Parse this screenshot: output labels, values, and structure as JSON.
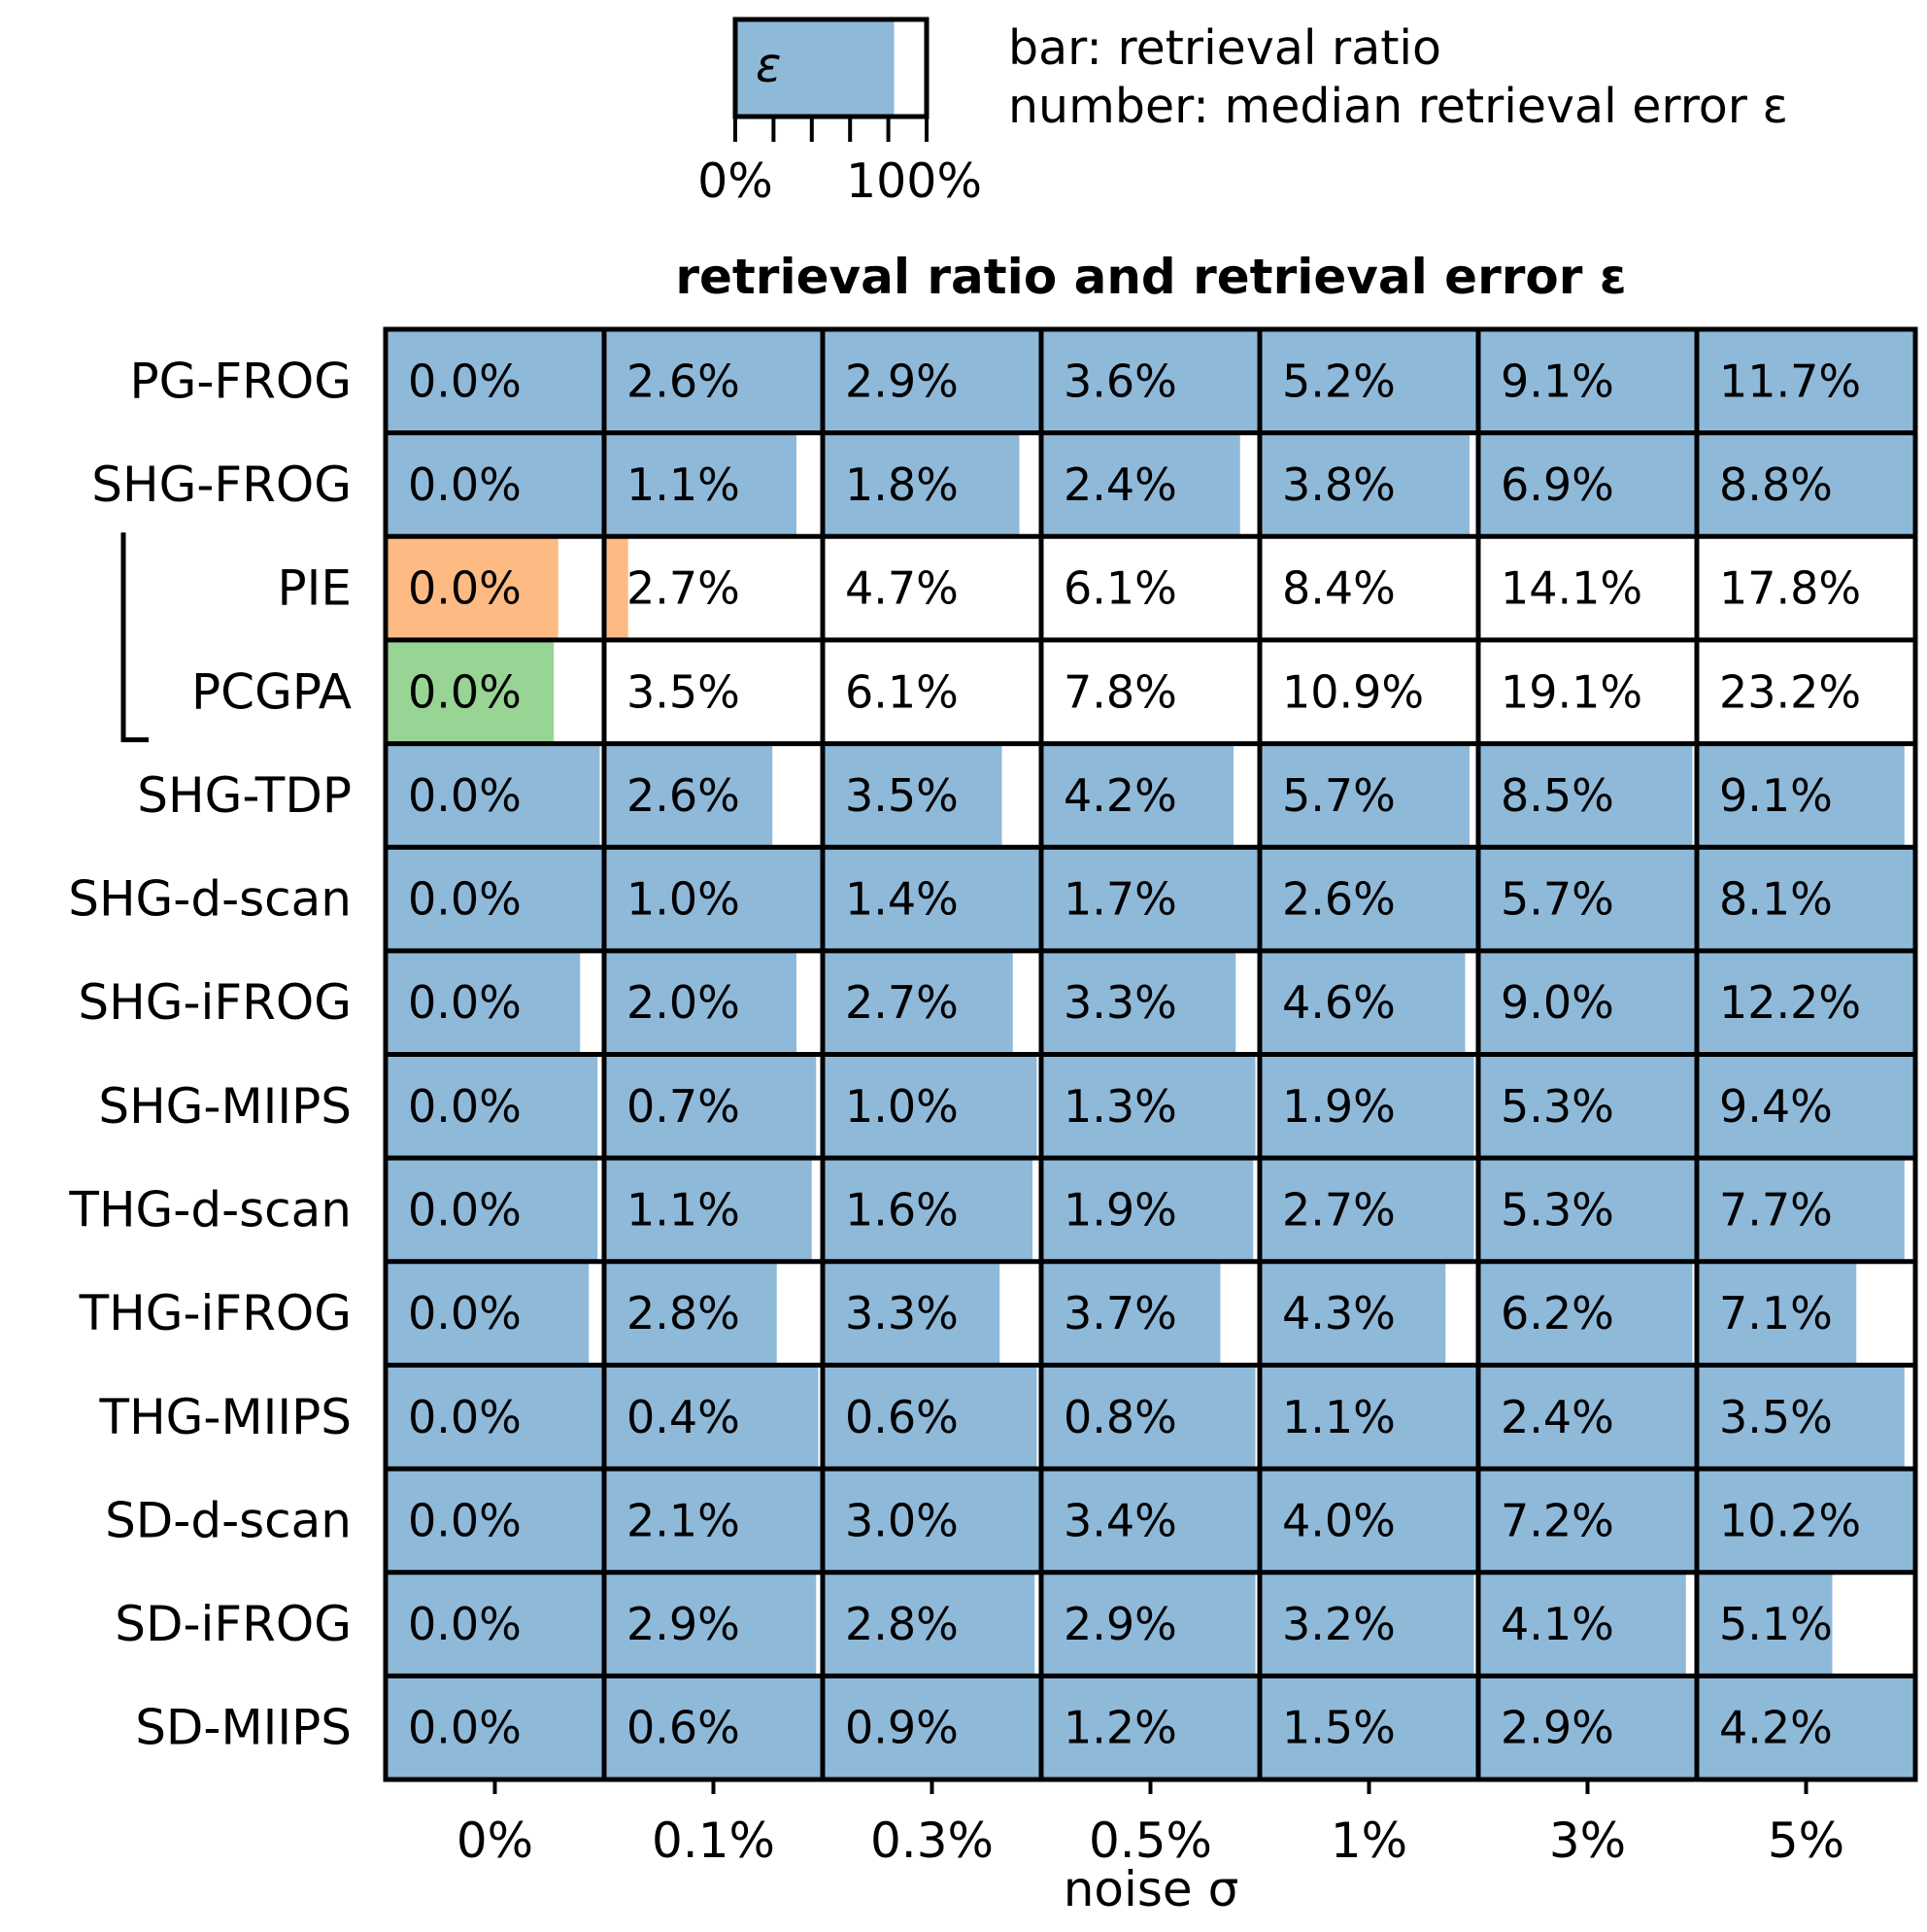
{
  "chart_data": {
    "type": "heatmap",
    "title": "retrieval ratio and retrieval error ε",
    "xlabel": "noise σ",
    "ylabel": "",
    "legend": {
      "swatch_symbol": "ε",
      "line1": "bar: retrieval ratio",
      "line2": "number: median retrieval error ε",
      "min_label": "0%",
      "max_label": "100%",
      "example_ratio": 0.83
    },
    "columns": [
      "0%",
      "0.1%",
      "0.3%",
      "0.5%",
      "1%",
      "3%",
      "5%"
    ],
    "bracket_rows": [
      "PIE",
      "PCGPA"
    ],
    "colors": {
      "default": "#8fb9d9",
      "PIE": "#fdbb83",
      "PCGPA": "#98d494"
    },
    "rows": [
      {
        "name": "PG-FROG",
        "errors": [
          "0.0%",
          "2.6%",
          "2.9%",
          "3.6%",
          "5.2%",
          "9.1%",
          "11.7%"
        ],
        "ratios": [
          1,
          1,
          1,
          1,
          1,
          1,
          1
        ]
      },
      {
        "name": "SHG-FROG",
        "errors": [
          "0.0%",
          "1.1%",
          "1.8%",
          "2.4%",
          "3.8%",
          "6.9%",
          "8.8%"
        ],
        "ratios": [
          1,
          0.88,
          0.9,
          0.91,
          0.96,
          1,
          1
        ]
      },
      {
        "name": "PIE",
        "errors": [
          "0.0%",
          "2.7%",
          "4.7%",
          "6.1%",
          "8.4%",
          "14.1%",
          "17.8%"
        ],
        "ratios": [
          0.79,
          0.11,
          0,
          0,
          0,
          0,
          0
        ]
      },
      {
        "name": "PCGPA",
        "errors": [
          "0.0%",
          "3.5%",
          "6.1%",
          "7.8%",
          "10.9%",
          "19.1%",
          "23.2%"
        ],
        "ratios": [
          0.77,
          0,
          0,
          0,
          0,
          0,
          0
        ]
      },
      {
        "name": "SHG-TDP",
        "errors": [
          "0.0%",
          "2.6%",
          "3.5%",
          "4.2%",
          "5.7%",
          "8.5%",
          "9.1%"
        ],
        "ratios": [
          0.98,
          0.77,
          0.82,
          0.88,
          0.96,
          0.98,
          0.95
        ]
      },
      {
        "name": "SHG-d-scan",
        "errors": [
          "0.0%",
          "1.0%",
          "1.4%",
          "1.7%",
          "2.6%",
          "5.7%",
          "8.1%"
        ],
        "ratios": [
          1,
          1,
          1,
          1,
          1,
          1,
          1
        ]
      },
      {
        "name": "SHG-iFROG",
        "errors": [
          "0.0%",
          "2.0%",
          "2.7%",
          "3.3%",
          "4.6%",
          "9.0%",
          "12.2%"
        ],
        "ratios": [
          0.89,
          0.88,
          0.87,
          0.89,
          0.94,
          1,
          1
        ]
      },
      {
        "name": "SHG-MIIPS",
        "errors": [
          "0.0%",
          "0.7%",
          "1.0%",
          "1.3%",
          "1.9%",
          "5.3%",
          "9.4%"
        ],
        "ratios": [
          0.97,
          0.97,
          0.98,
          0.98,
          0.98,
          1,
          1
        ]
      },
      {
        "name": "THG-d-scan",
        "errors": [
          "0.0%",
          "1.1%",
          "1.6%",
          "1.9%",
          "2.7%",
          "5.3%",
          "7.7%"
        ],
        "ratios": [
          0.97,
          0.95,
          0.96,
          0.97,
          0.98,
          0.99,
          0.95
        ]
      },
      {
        "name": "THG-iFROG",
        "errors": [
          "0.0%",
          "2.8%",
          "3.3%",
          "3.7%",
          "4.3%",
          "6.2%",
          "7.1%"
        ],
        "ratios": [
          0.93,
          0.79,
          0.81,
          0.82,
          0.85,
          0.98,
          0.73
        ]
      },
      {
        "name": "THG-MIIPS",
        "errors": [
          "0.0%",
          "0.4%",
          "0.6%",
          "0.8%",
          "1.1%",
          "2.4%",
          "3.5%"
        ],
        "ratios": [
          0.99,
          0.98,
          0.98,
          0.98,
          0.99,
          0.99,
          0.95
        ]
      },
      {
        "name": "SD-d-scan",
        "errors": [
          "0.0%",
          "2.1%",
          "3.0%",
          "3.4%",
          "4.0%",
          "7.2%",
          "10.2%"
        ],
        "ratios": [
          1,
          1,
          1,
          1,
          1,
          1,
          1
        ]
      },
      {
        "name": "SD-iFROG",
        "errors": [
          "0.0%",
          "2.9%",
          "2.8%",
          "2.9%",
          "3.2%",
          "4.1%",
          "5.1%"
        ],
        "ratios": [
          0.99,
          0.97,
          0.97,
          0.98,
          0.98,
          0.95,
          0.62
        ]
      },
      {
        "name": "SD-MIIPS",
        "errors": [
          "0.0%",
          "0.6%",
          "0.9%",
          "1.2%",
          "1.5%",
          "2.9%",
          "4.2%"
        ],
        "ratios": [
          1,
          0.99,
          0.99,
          1,
          1,
          1,
          1
        ]
      }
    ]
  }
}
